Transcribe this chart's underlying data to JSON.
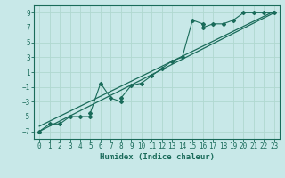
{
  "title": "",
  "xlabel": "Humidex (Indice chaleur)",
  "bg_color": "#c8e8e8",
  "grid_color": "#b0d8d0",
  "line_color": "#1a6b5a",
  "scatter_x": [
    0,
    1,
    2,
    3,
    4,
    5,
    5,
    6,
    7,
    8,
    8,
    9,
    10,
    11,
    12,
    13,
    14,
    15,
    16,
    16,
    17,
    18,
    19,
    20,
    21,
    22,
    23
  ],
  "scatter_y": [
    -7,
    -6,
    -6,
    -5,
    -5,
    -5,
    -4.5,
    -0.5,
    -2.5,
    -3,
    -2.5,
    -0.8,
    -0.5,
    0.5,
    1.5,
    2.5,
    3,
    8,
    7.5,
    7,
    7.5,
    7.5,
    8,
    9,
    9,
    9,
    9
  ],
  "xlim": [
    -0.5,
    23.5
  ],
  "ylim": [
    -8,
    10
  ],
  "xticks": [
    0,
    1,
    2,
    3,
    4,
    5,
    6,
    7,
    8,
    9,
    10,
    11,
    12,
    13,
    14,
    15,
    16,
    17,
    18,
    19,
    20,
    21,
    22,
    23
  ],
  "yticks": [
    -7,
    -5,
    -3,
    -1,
    1,
    3,
    5,
    7,
    9
  ],
  "trend1_x": [
    0,
    23
  ],
  "trend1_y": [
    -7,
    9
  ],
  "trend2_x": [
    0,
    23
  ],
  "trend2_y": [
    -6.5,
    9
  ]
}
